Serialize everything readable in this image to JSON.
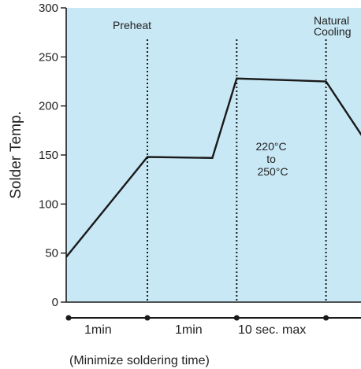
{
  "chart_data": {
    "type": "line",
    "title": "",
    "xlabel": "",
    "ylabel": "Solder Temp.",
    "ylim": [
      0,
      300
    ],
    "yticks": [
      0,
      50,
      100,
      150,
      200,
      250,
      300
    ],
    "grid": false,
    "legend": "none",
    "series": [
      {
        "x": [
          0,
          1,
          1.8,
          2.1,
          3.2,
          3.8
        ],
        "y": [
          46,
          148,
          147,
          228,
          225,
          150
        ]
      }
    ],
    "phase_boundaries": [
      1,
      2.1,
      3.2
    ],
    "annotations": {
      "preheat": "Preheat",
      "natural_cooling": "Natural\nCooling",
      "range_line1": "220°C",
      "range_line2": "to",
      "range_line3": "250°C"
    },
    "durations": [
      "1min",
      "1min",
      "10 sec. max"
    ],
    "footnote": "(Minimize soldering time)"
  },
  "colors": {
    "plot_background": "#c8e8f5",
    "line": "#1a1a1a",
    "axis": "#1a1a1a",
    "text": "#222222"
  }
}
